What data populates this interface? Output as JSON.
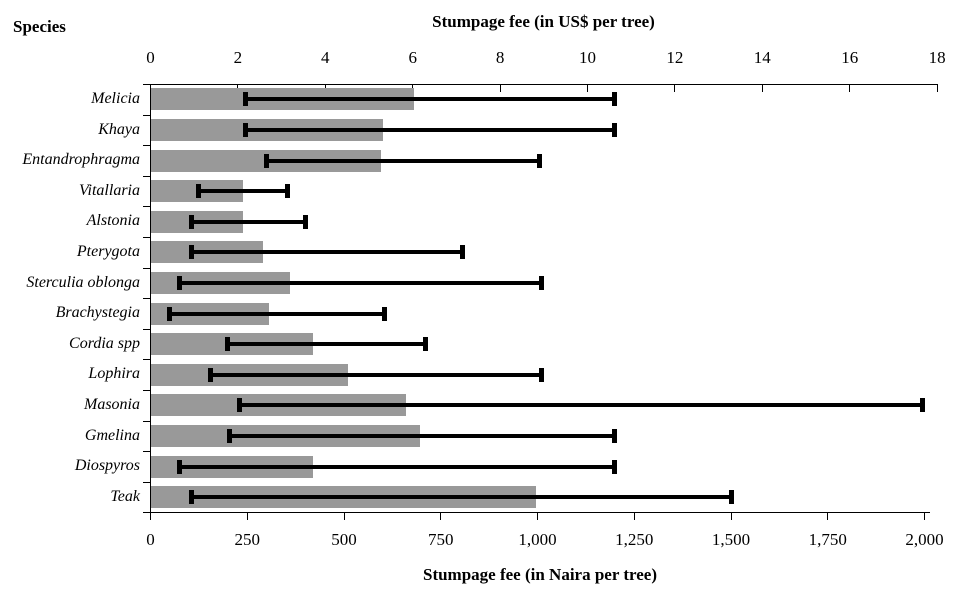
{
  "header": {
    "species_label": "Species",
    "top_axis_title": "Stumpage fee (in US$ per tree)",
    "bottom_axis_title": "Stumpage fee (in Naira per tree)"
  },
  "chart_data": {
    "type": "bar",
    "orientation": "horizontal",
    "title_top": "Stumpage fee (in US$ per tree)",
    "title_bottom": "Stumpage fee (in Naira per tree)",
    "categories_label": "Species",
    "bar_color": "#999999",
    "error_bar_color": "#000000",
    "top_axis": {
      "label": "Stumpage fee (in US$ per tree)",
      "range": [
        0,
        18
      ],
      "ticks": [
        0,
        2,
        4,
        6,
        8,
        10,
        12,
        14,
        16,
        18
      ],
      "tick_labels": [
        "0",
        "2",
        "4",
        "6",
        "8",
        "10",
        "12",
        "14",
        "16",
        "18"
      ]
    },
    "bottom_axis": {
      "label": "Stumpage fee (in Naira per tree)",
      "range": [
        0,
        2000
      ],
      "ticks": [
        0,
        250,
        500,
        750,
        1000,
        1250,
        1500,
        1750,
        2000
      ],
      "tick_labels": [
        "0",
        "250",
        "500",
        "750",
        "1,000",
        "1,250",
        "1,500",
        "1,750",
        "2,000"
      ]
    },
    "series": [
      {
        "species": "Melicia",
        "fee_naira": 680,
        "min_naira": 245,
        "max_naira": 1200
      },
      {
        "species": "Khaya",
        "fee_naira": 600,
        "min_naira": 245,
        "max_naira": 1200
      },
      {
        "species": "Entandrophragma",
        "fee_naira": 595,
        "min_naira": 300,
        "max_naira": 1005
      },
      {
        "species": "Vitallaria",
        "fee_naira": 238,
        "min_naira": 125,
        "max_naira": 355
      },
      {
        "species": "Alstonia",
        "fee_naira": 238,
        "min_naira": 105,
        "max_naira": 400
      },
      {
        "species": "Pterygota",
        "fee_naira": 290,
        "min_naira": 105,
        "max_naira": 805
      },
      {
        "species": "Sterculia oblonga",
        "fee_naira": 360,
        "min_naira": 75,
        "max_naira": 1010
      },
      {
        "species": "Brachystegia",
        "fee_naira": 305,
        "min_naira": 50,
        "max_naira": 605
      },
      {
        "species": "Cordia spp",
        "fee_naira": 420,
        "min_naira": 200,
        "max_naira": 710
      },
      {
        "species": "Lophira",
        "fee_naira": 510,
        "min_naira": 155,
        "max_naira": 1010
      },
      {
        "species": "Masonia",
        "fee_naira": 660,
        "min_naira": 230,
        "max_naira": 1995
      },
      {
        "species": "Gmelina",
        "fee_naira": 695,
        "min_naira": 205,
        "max_naira": 1200
      },
      {
        "species": "Diospyros",
        "fee_naira": 420,
        "min_naira": 75,
        "max_naira": 1200
      },
      {
        "species": "Teak",
        "fee_naira": 995,
        "min_naira": 105,
        "max_naira": 1500
      }
    ]
  }
}
